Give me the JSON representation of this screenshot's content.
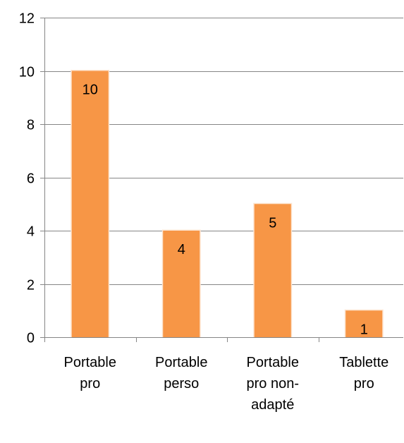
{
  "chart_data": {
    "type": "bar",
    "categories": [
      [
        "Portable",
        "pro"
      ],
      [
        "Portable",
        "perso"
      ],
      [
        "Portable",
        "pro non-",
        "adapté"
      ],
      [
        "Tablette",
        "pro"
      ]
    ],
    "values": [
      10,
      4,
      5,
      1
    ],
    "data_labels": [
      "10",
      "4",
      "5",
      "1"
    ],
    "y_ticks": [
      "0",
      "2",
      "4",
      "6",
      "8",
      "10",
      "12"
    ],
    "ylim": [
      0,
      12
    ],
    "grid": true,
    "legend": "none",
    "title": "",
    "xlabel": "",
    "ylabel": "",
    "colors": {
      "bar": "#f79646",
      "bar_edge": "#fde4cf",
      "grid": "#868686",
      "axis": "#868686"
    }
  }
}
